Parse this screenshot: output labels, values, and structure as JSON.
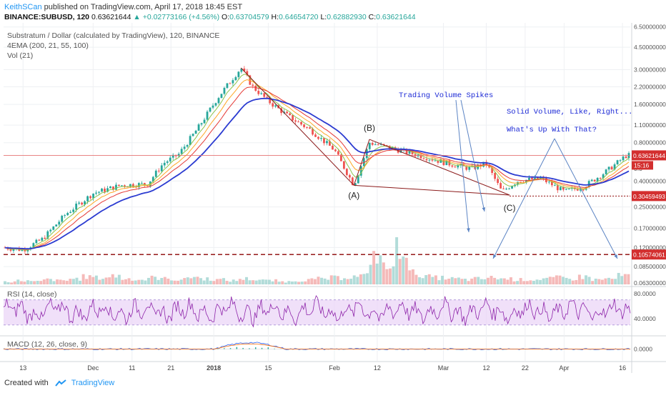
{
  "header": {
    "author": "KeithSCan",
    "published": "published on TradingView.com, April 17, 2018 18:45 EST",
    "symbol": "BINANCE:SUBUSD, 120",
    "last": "0.63621644",
    "change": "+0.02773166 (+4.56%)",
    "open_label": "O:",
    "open": "0.63704579",
    "high_label": "H:",
    "high": "0.64654720",
    "low_label": "L:",
    "low": "0.62882930",
    "close_label": "C:",
    "close": "0.63621644"
  },
  "overlay": {
    "title": "Substratum / Dollar (calculated by TradingView), 120, BINANCE",
    "ema": "4EMA (200, 21, 55, 100)",
    "vol": "Vol (21)",
    "rsi": "RSI (14, close)",
    "macd": "MACD (12, 26, close, 9)"
  },
  "footer": {
    "created": "Created with",
    "brand": "TradingView"
  },
  "colors": {
    "grid": "#eef0f3",
    "candle_up": "#26a69a",
    "candle_down": "#ef5350",
    "ema200": "#2b3bd1",
    "ema21": "#8bc34a",
    "ema55": "#ffa726",
    "ema100": "#e53935",
    "rsi": "#8e24aa",
    "rsi_band": "#e9d3f7",
    "price_label": "#d32f2f",
    "annotation": "#1e2bd6",
    "trend": "#8b1a1a",
    "arrow": "#5b84c4"
  },
  "chart_data": [
    {
      "type": "candlestick",
      "title": "Substratum / Dollar (calculated by TradingView), 120, BINANCE",
      "x_ticks": [
        "13",
        "Dec",
        "11",
        "21",
        "2018",
        "15",
        "Feb",
        "12",
        "Mar",
        "12",
        "22",
        "Apr",
        "16"
      ],
      "y_scale": "log",
      "y_ticks": [
        "6.50000000",
        "4.50000000",
        "3.00000000",
        "2.20000000",
        "1.60000000",
        "1.10000000",
        "0.80000000",
        "0.5",
        "0.40000000",
        "0.25000000",
        "0.17000000",
        "0.12000000",
        "0.08500000",
        "0.06300000"
      ],
      "y_range": [
        0.06,
        7.0
      ],
      "price_path": [
        {
          "x": "Nov 8",
          "y": 0.12
        },
        {
          "x": "Nov 13",
          "y": 0.115
        },
        {
          "x": "Nov 18",
          "y": 0.14
        },
        {
          "x": "Nov 24",
          "y": 0.22
        },
        {
          "x": "Dec 1",
          "y": 0.32
        },
        {
          "x": "Dec 8",
          "y": 0.37
        },
        {
          "x": "Dec 15",
          "y": 0.38
        },
        {
          "x": "Dec 19",
          "y": 0.55
        },
        {
          "x": "Dec 23",
          "y": 0.65
        },
        {
          "x": "Dec 28",
          "y": 1.05
        },
        {
          "x": "Jan 2",
          "y": 1.8
        },
        {
          "x": "Jan 6",
          "y": 2.6
        },
        {
          "x": "Jan 8",
          "y": 3.1
        },
        {
          "x": "Jan 11",
          "y": 2.2
        },
        {
          "x": "Jan 15",
          "y": 1.7
        },
        {
          "x": "Jan 20",
          "y": 1.3
        },
        {
          "x": "Jan 26",
          "y": 1.0
        },
        {
          "x": "Feb 1",
          "y": 0.7
        },
        {
          "x": "Feb 6",
          "y": 0.37
        },
        {
          "x": "Feb 10",
          "y": 0.8
        },
        {
          "x": "Feb 16",
          "y": 0.72
        },
        {
          "x": "Feb 24",
          "y": 0.62
        },
        {
          "x": "Mar 2",
          "y": 0.55
        },
        {
          "x": "Mar 8",
          "y": 0.5
        },
        {
          "x": "Mar 12",
          "y": 0.55
        },
        {
          "x": "Mar 16",
          "y": 0.33
        },
        {
          "x": "Mar 20",
          "y": 0.4
        },
        {
          "x": "Mar 26",
          "y": 0.42
        },
        {
          "x": "Apr 1",
          "y": 0.33
        },
        {
          "x": "Apr 6",
          "y": 0.36
        },
        {
          "x": "Apr 12",
          "y": 0.48
        },
        {
          "x": "Apr 17",
          "y": 0.636
        }
      ],
      "price_labels": [
        {
          "value": "0.63621644",
          "extra": "15:16"
        },
        {
          "value": "0.30459493"
        },
        {
          "value": "0.10574061"
        }
      ],
      "annotations": [
        "Trading Volume Spikes",
        "Solid Volume, Like, Right...",
        "What's Up With That?",
        "(A)",
        "(B)",
        "(C)"
      ]
    },
    {
      "type": "bar",
      "title": "Vol (21)",
      "series": [
        {
          "values": [
            3,
            4,
            3,
            5,
            4,
            6,
            8,
            7,
            9,
            6,
            5,
            7,
            6,
            5,
            8,
            6,
            5,
            4,
            6,
            5,
            4,
            3,
            4,
            5,
            6,
            7,
            8,
            9,
            30,
            18,
            40,
            12,
            8,
            7,
            6,
            5,
            6,
            7,
            6,
            5,
            5,
            6,
            7,
            6,
            8,
            5,
            6,
            9
          ]
        }
      ]
    },
    {
      "type": "line",
      "title": "RSI (14, close)",
      "y_ticks": [
        "80.0000",
        "40.0000"
      ],
      "band": [
        30,
        70
      ]
    },
    {
      "type": "line",
      "title": "MACD (12, 26, close, 9)",
      "y_ticks": [
        "0.0000"
      ]
    }
  ]
}
